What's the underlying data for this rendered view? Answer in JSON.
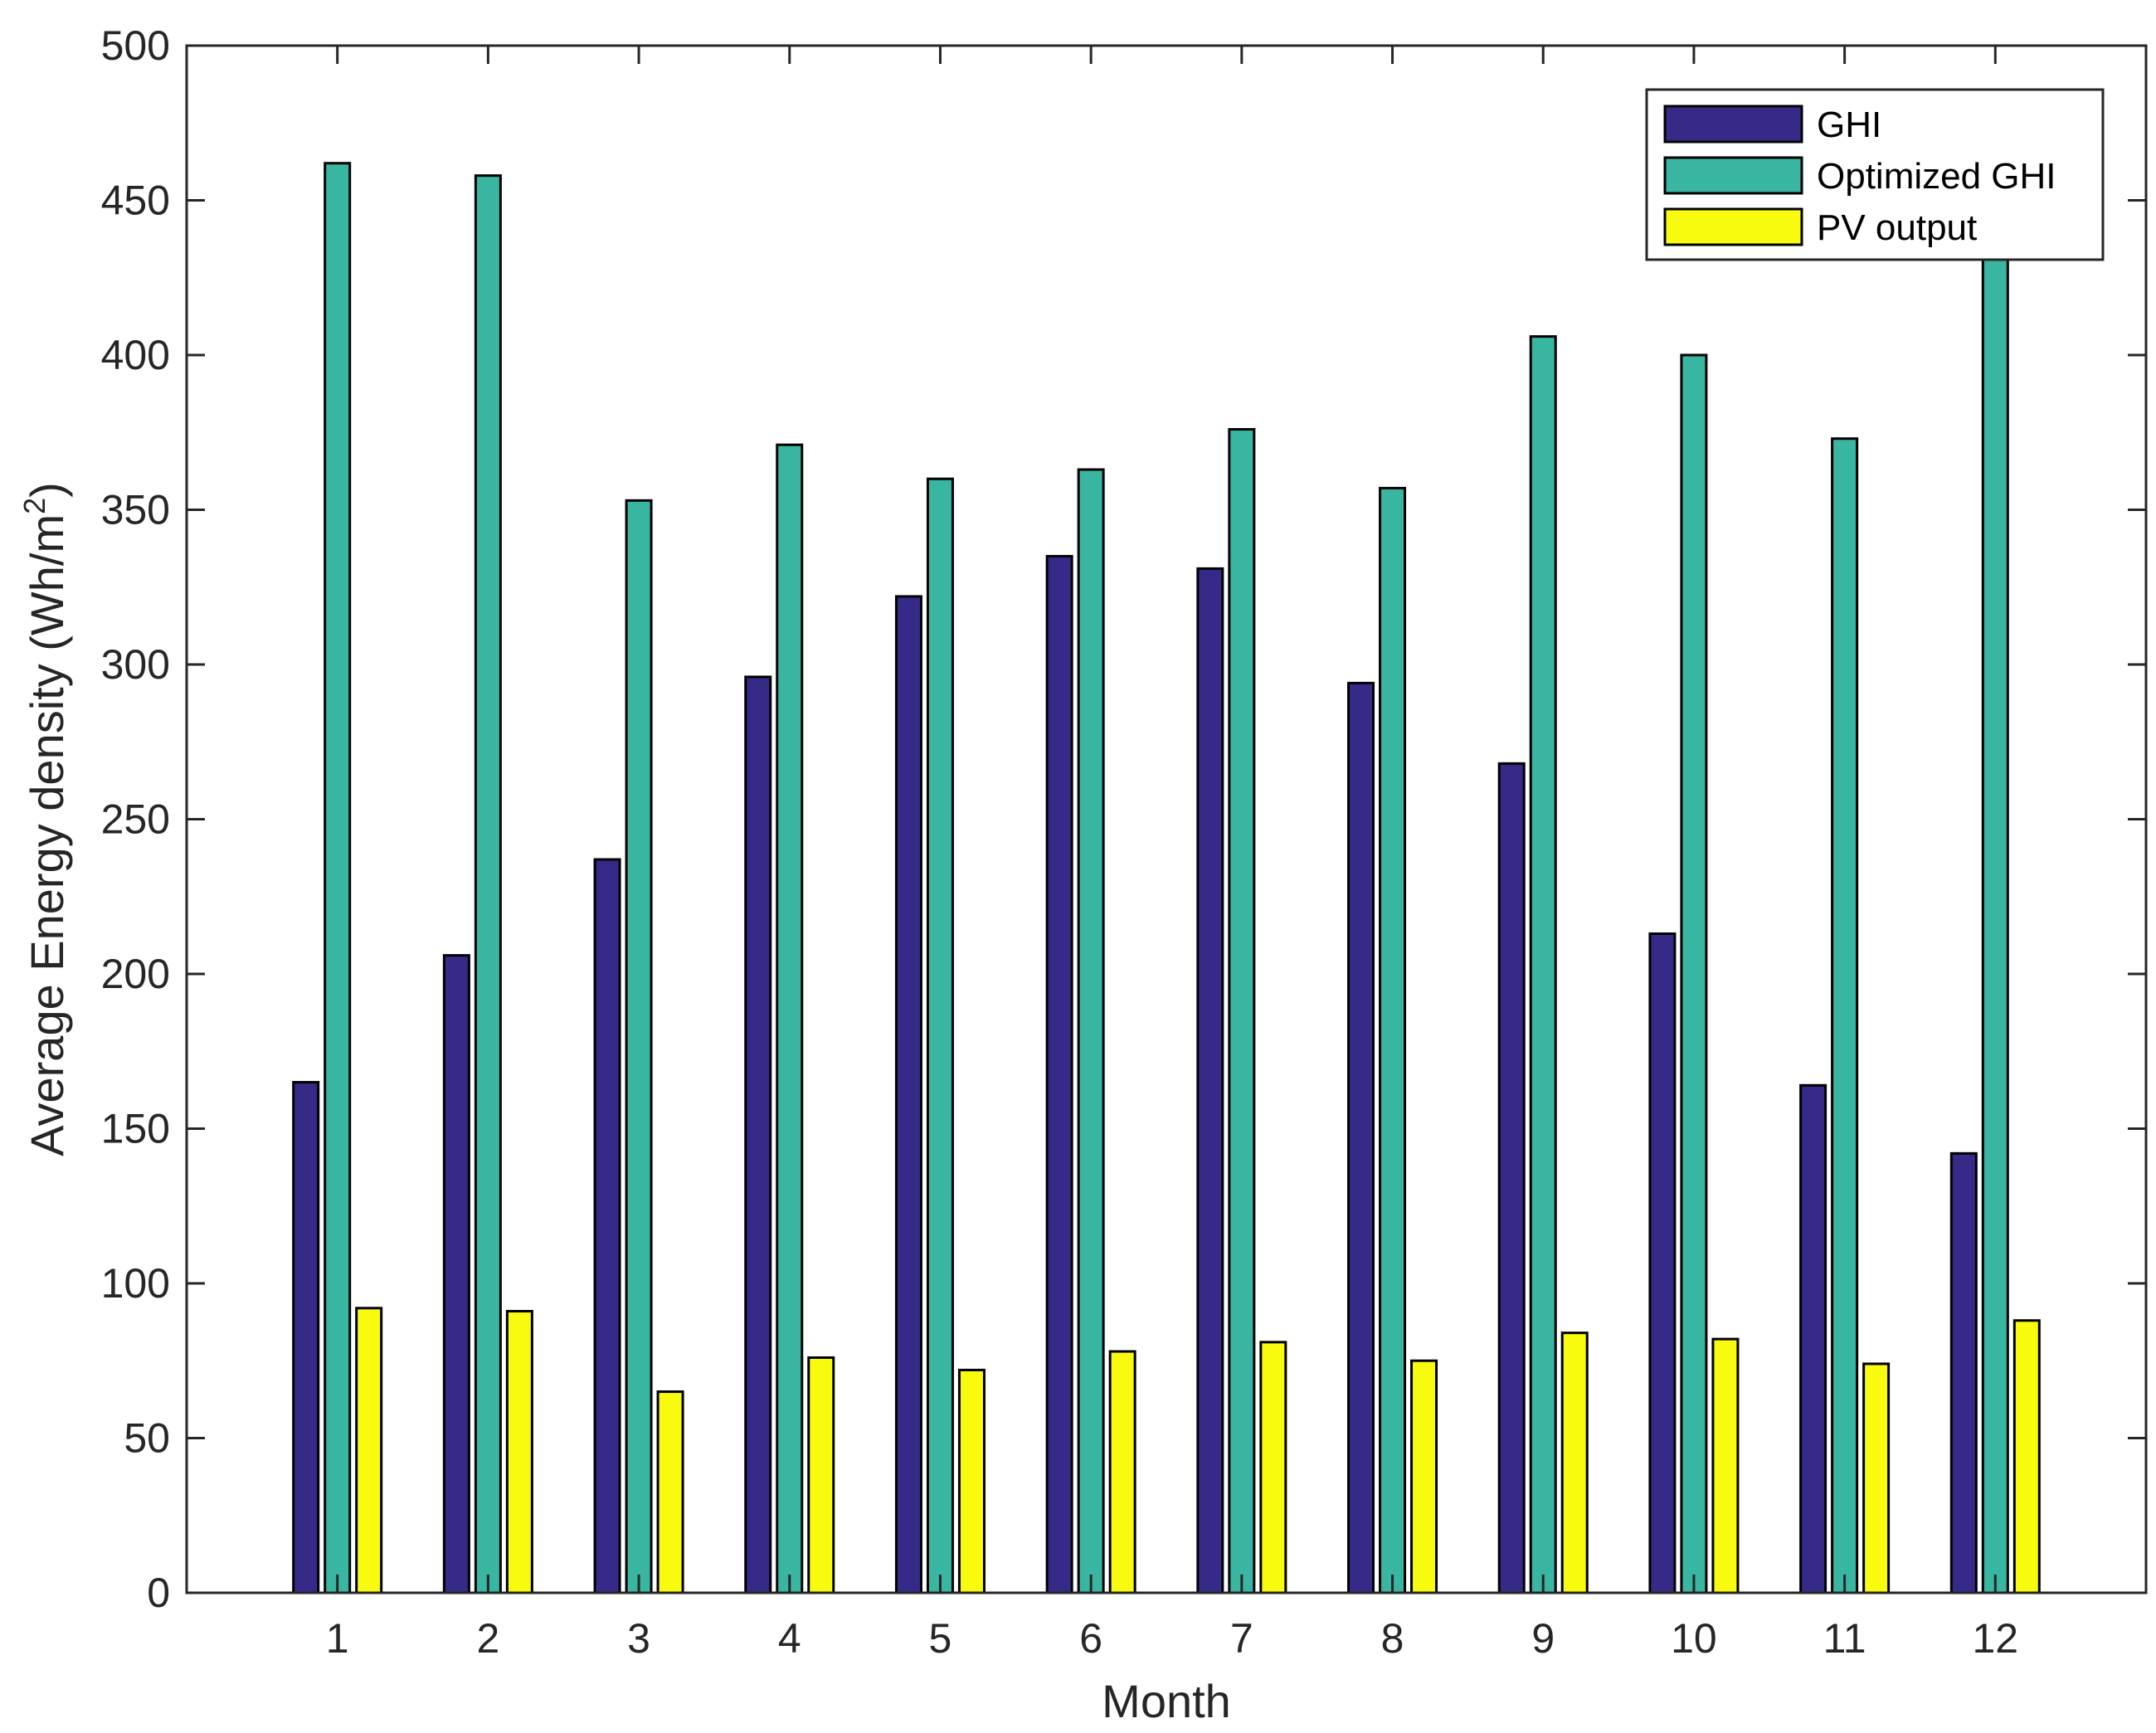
{
  "chart_data": {
    "type": "bar",
    "title": "",
    "xlabel": "Month",
    "ylabel": "Average Energy density (Wh/m",
    "ylabel_superscript": "2",
    "ylabel_suffix": ")",
    "categories": [
      "1",
      "2",
      "3",
      "4",
      "5",
      "6",
      "7",
      "8",
      "9",
      "10",
      "11",
      "12"
    ],
    "x_range": [
      0,
      13
    ],
    "ylim": [
      0,
      500
    ],
    "yticks": [
      0,
      50,
      100,
      150,
      200,
      250,
      300,
      350,
      400,
      450,
      500
    ],
    "grid": false,
    "legend_position": "top-right",
    "series": [
      {
        "name": "GHI",
        "color": "#352a87",
        "values": [
          165,
          206,
          237,
          296,
          322,
          335,
          331,
          294,
          268,
          213,
          164,
          142
        ]
      },
      {
        "name": "Optimized GHI",
        "color": "#39b6a1",
        "values": [
          462,
          458,
          353,
          371,
          360,
          363,
          376,
          357,
          406,
          400,
          373,
          433
        ]
      },
      {
        "name": "PV output",
        "color": "#f9fb0e",
        "values": [
          92,
          91,
          65,
          76,
          72,
          78,
          81,
          75,
          84,
          82,
          74,
          88
        ]
      }
    ]
  }
}
